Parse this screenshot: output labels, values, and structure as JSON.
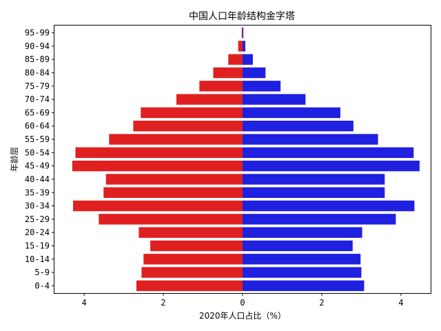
{
  "chart_data": {
    "type": "bar",
    "orientation": "horizontal",
    "title": "中国人口年龄结构金字塔",
    "xlabel": "2020年人口占比（%）",
    "ylabel": "年龄层",
    "xlim": [
      -4.75,
      4.75
    ],
    "xticks": [
      -4,
      -2,
      0,
      2,
      4
    ],
    "xtick_labels": [
      "4",
      "2",
      "0",
      "2",
      "4"
    ],
    "grid": false,
    "categories": [
      "0-4",
      "5-9",
      "10-14",
      "15-19",
      "20-24",
      "25-29",
      "30-34",
      "35-39",
      "40-44",
      "45-49",
      "50-54",
      "55-59",
      "60-64",
      "65-69",
      "70-74",
      "75-79",
      "80-84",
      "85-89",
      "90-94",
      "95-99"
    ],
    "series": [
      {
        "color": "#e02020",
        "values": [
          -2.68,
          -2.55,
          -2.5,
          -2.33,
          -2.62,
          -3.63,
          -4.28,
          -3.51,
          -3.45,
          -4.3,
          -4.22,
          -3.37,
          -2.76,
          -2.57,
          -1.67,
          -1.09,
          -0.74,
          -0.36,
          -0.11,
          -0.02
        ]
      },
      {
        "color": "#2020e0",
        "values": [
          3.07,
          3.0,
          2.98,
          2.78,
          3.02,
          3.87,
          4.34,
          3.59,
          3.59,
          4.47,
          4.32,
          3.42,
          2.8,
          2.47,
          1.59,
          0.96,
          0.58,
          0.26,
          0.07,
          0.02
        ]
      }
    ]
  }
}
